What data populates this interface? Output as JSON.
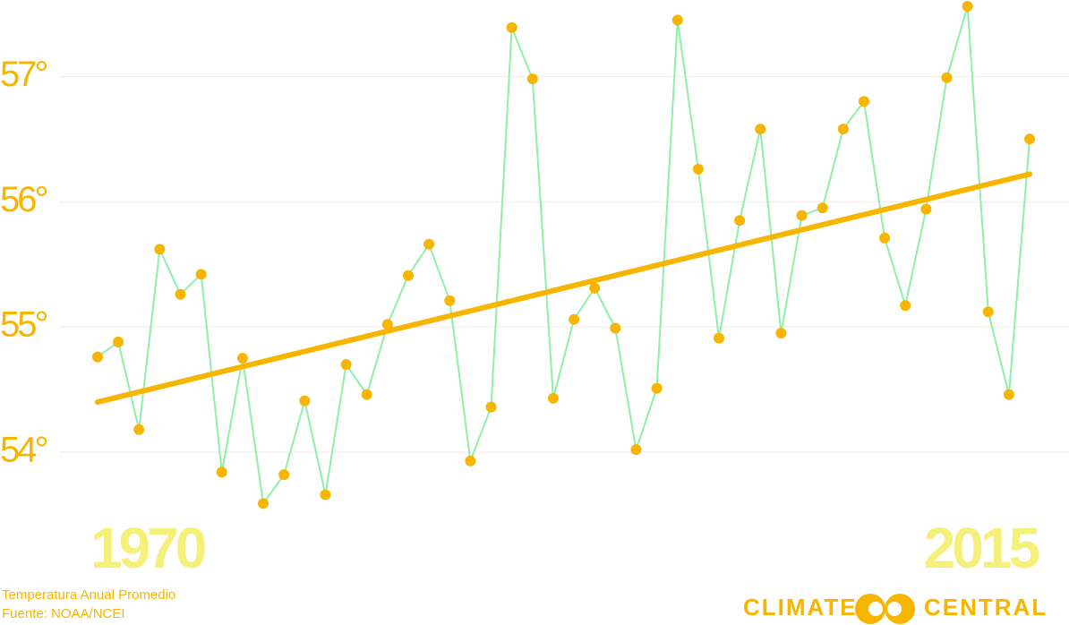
{
  "chart_data": {
    "type": "line",
    "caption": "Temperatura Anual Promedio",
    "source": "Fuente: NOAA/NCEI",
    "brand": {
      "left": "CLIMATE",
      "right": "CENTRAL"
    },
    "x": [
      1970,
      1971,
      1972,
      1973,
      1974,
      1975,
      1976,
      1977,
      1978,
      1979,
      1980,
      1981,
      1982,
      1983,
      1984,
      1985,
      1986,
      1987,
      1988,
      1989,
      1990,
      1991,
      1992,
      1993,
      1994,
      1995,
      1996,
      1997,
      1998,
      1999,
      2000,
      2001,
      2002,
      2003,
      2004,
      2005,
      2006,
      2007,
      2008,
      2009,
      2010,
      2011,
      2012,
      2013,
      2014,
      2015
    ],
    "series": [
      {
        "color": "#8ef0a6",
        "marker_color": "#f7b500",
        "values": [
          54.76,
          54.88,
          54.18,
          55.62,
          55.26,
          55.42,
          53.84,
          54.75,
          53.59,
          53.82,
          54.41,
          53.66,
          54.7,
          54.46,
          55.02,
          55.41,
          55.66,
          55.21,
          53.93,
          54.36,
          57.39,
          56.98,
          54.43,
          55.06,
          55.31,
          54.99,
          54.02,
          54.51,
          57.45,
          56.26,
          54.91,
          55.85,
          56.58,
          54.95,
          55.89,
          55.95,
          56.58,
          56.8,
          55.71,
          55.17,
          55.94,
          56.99,
          57.56,
          55.12,
          54.46,
          56.5
        ]
      }
    ],
    "trend": {
      "x": [
        1970,
        2015
      ],
      "values": [
        54.4,
        56.22
      ],
      "color": "#f7b500"
    },
    "xlim": [
      1965.29,
      2016.9
    ],
    "xticks": [
      1970,
      2015
    ],
    "ylim": [
      52.62,
      57.61
    ],
    "yticks": [
      {
        "value": 54,
        "label": "54°"
      },
      {
        "value": 55,
        "label": "55°"
      },
      {
        "value": 56,
        "label": "56°"
      },
      {
        "value": 57,
        "label": "57°"
      }
    ],
    "grid": true
  }
}
